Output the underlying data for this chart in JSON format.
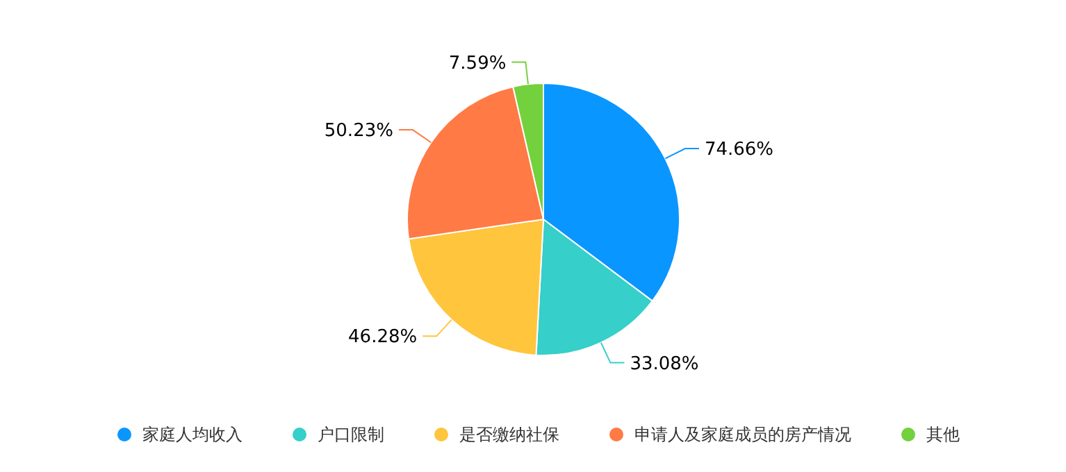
{
  "chart_data": {
    "type": "pie",
    "categories": [
      "家庭人均收入",
      "户口限制",
      "是否缴纳社保",
      "申请人及家庭成员的房产情况",
      "其他"
    ],
    "values": [
      74.66,
      33.08,
      46.28,
      50.23,
      7.59
    ],
    "colors": [
      "#0a96ff",
      "#36cfc9",
      "#ffc53d",
      "#ff7a45",
      "#73d13d"
    ],
    "value_labels": [
      "74.66%",
      "33.08%",
      "46.28%",
      "50.23%",
      "7.59%"
    ],
    "legend": "bottom"
  }
}
